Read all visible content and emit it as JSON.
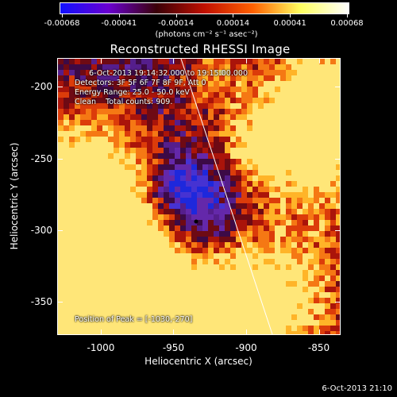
{
  "colorbar": {
    "tick_labels": [
      "-0.00068",
      "-0.00041",
      "-0.00014",
      "0.00014",
      "0.00041",
      "0.00068"
    ],
    "units_label": "(photons cm⁻² s⁻¹ asec⁻²)",
    "colors": [
      "#1010ff",
      "#6a00d0",
      "#3a0008",
      "#c01000",
      "#ff6000",
      "#ffff60",
      "#ffffff"
    ]
  },
  "title": "Reconstructed RHESSI Image",
  "annotations": {
    "time_range": "6-Oct-2013 19:14:32.000 to 19:15:00.000",
    "detectors": "Detectors: 3F 5F 6F 7F 8F 9F, Att 0",
    "energy": "Energy Range: 25.0 - 50.0 keV",
    "clean": "Clean    Total counts: 909.",
    "peak": "Position of Peak = [-1030,-270]"
  },
  "axes": {
    "xlabel": "Heliocentric X (arcsec)",
    "ylabel": "Heliocentric Y (arcsec)",
    "xlim": [
      -1030,
      -835
    ],
    "ylim": [
      -373,
      -180
    ],
    "xticks": [
      -1000,
      -950,
      -900,
      -850
    ],
    "yticks": [
      -200,
      -250,
      -300,
      -350
    ],
    "xtick_labels": [
      "-1000",
      "-950",
      "-900",
      "-850"
    ],
    "ytick_labels": [
      "-200",
      "-250",
      "-300",
      "-350"
    ]
  },
  "footer_timestamp": "6-Oct-2013 21:10"
}
